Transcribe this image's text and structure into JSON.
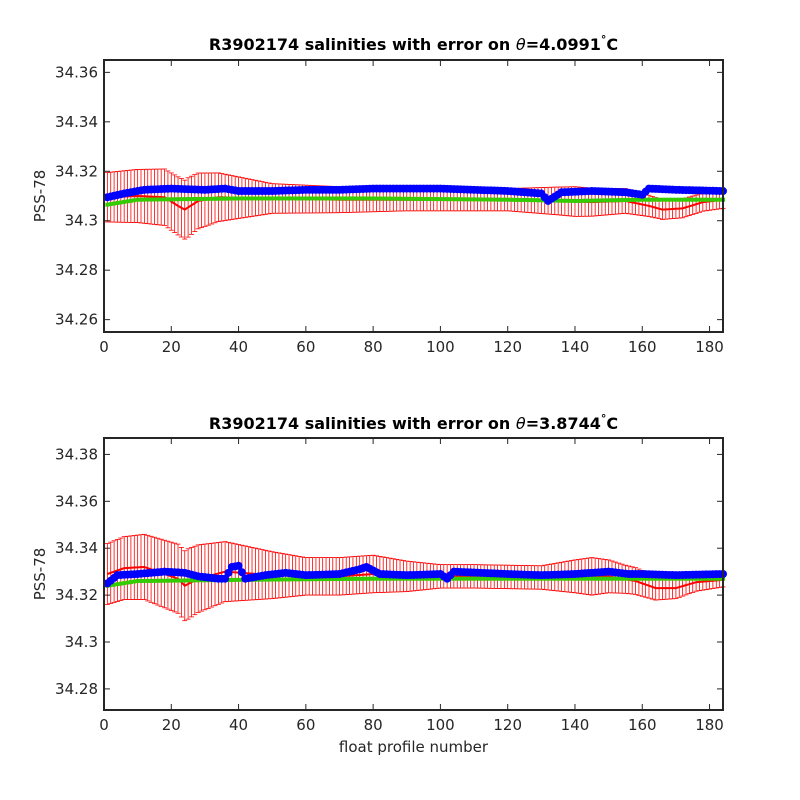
{
  "chart_data": [
    {
      "type": "line",
      "title_parts": [
        "R3902174 salinities with error on ",
        "θ",
        "=4.0991",
        "°",
        "C"
      ],
      "xlabel": "",
      "ylabel": "PSS-78",
      "xlim": [
        0,
        184
      ],
      "ylim": [
        34.255,
        34.365
      ],
      "xticks": [
        0,
        20,
        40,
        60,
        80,
        100,
        120,
        140,
        160,
        180
      ],
      "xtick_labels": [
        "0",
        "20",
        "40",
        "60",
        "80",
        "100",
        "120",
        "140",
        "160",
        "180"
      ],
      "yticks": [
        34.26,
        34.28,
        34.3,
        34.32,
        34.34,
        34.36
      ],
      "ytick_labels": [
        "34.26",
        "34.28",
        "34.3",
        "34.32",
        "34.34",
        "34.36"
      ],
      "grid": false,
      "series": [
        {
          "role": "red-mapped-with-error",
          "color": "#ff0000",
          "points": [
            [
              1,
              34.3095
            ],
            [
              10,
              34.31
            ],
            [
              18,
              34.3095
            ],
            [
              22,
              34.306
            ],
            [
              24,
              34.3045
            ],
            [
              28,
              34.308
            ],
            [
              34,
              34.3095
            ],
            [
              50,
              34.309
            ],
            [
              70,
              34.3085
            ],
            [
              90,
              34.3085
            ],
            [
              110,
              34.3085
            ],
            [
              120,
              34.3085
            ],
            [
              135,
              34.308
            ],
            [
              145,
              34.3075
            ],
            [
              155,
              34.308
            ],
            [
              162,
              34.306
            ],
            [
              166,
              34.3045
            ],
            [
              172,
              34.305
            ],
            [
              178,
              34.3075
            ],
            [
              184,
              34.3085
            ]
          ],
          "error": [
            [
              1,
              0.01
            ],
            [
              25,
              0.012
            ],
            [
              50,
              0.006
            ],
            [
              90,
              0.0045
            ],
            [
              120,
              0.0045
            ],
            [
              140,
              0.006
            ],
            [
              155,
              0.005
            ],
            [
              165,
              0.004
            ],
            [
              184,
              0.0035
            ]
          ]
        },
        {
          "role": "green-calibrated",
          "color": "#33cc00",
          "points": [
            [
              1,
              34.3065
            ],
            [
              10,
              34.3085
            ],
            [
              40,
              34.309
            ],
            [
              80,
              34.309
            ],
            [
              120,
              34.3085
            ],
            [
              140,
              34.308
            ],
            [
              160,
              34.3085
            ],
            [
              184,
              34.3085
            ]
          ]
        },
        {
          "role": "blue-float",
          "color": "#0000ff",
          "points": [
            [
              1,
              34.3095
            ],
            [
              6,
              34.311
            ],
            [
              12,
              34.3125
            ],
            [
              20,
              34.313
            ],
            [
              30,
              34.3125
            ],
            [
              36,
              34.313
            ],
            [
              40,
              34.312
            ],
            [
              50,
              34.312
            ],
            [
              60,
              34.3125
            ],
            [
              70,
              34.3125
            ],
            [
              80,
              34.313
            ],
            [
              90,
              34.313
            ],
            [
              100,
              34.313
            ],
            [
              110,
              34.3125
            ],
            [
              120,
              34.312
            ],
            [
              130,
              34.311
            ],
            [
              132,
              34.308
            ],
            [
              136,
              34.3115
            ],
            [
              145,
              34.312
            ],
            [
              155,
              34.3115
            ],
            [
              160,
              34.3105
            ],
            [
              162,
              34.313
            ],
            [
              170,
              34.3125
            ],
            [
              184,
              34.312
            ]
          ]
        }
      ]
    },
    {
      "type": "line",
      "title_parts": [
        "R3902174 salinities with error on ",
        "θ",
        "=3.8744",
        "°",
        "C"
      ],
      "xlabel": "float profile number",
      "ylabel": "PSS-78",
      "xlim": [
        0,
        184
      ],
      "ylim": [
        34.271,
        34.387
      ],
      "xticks": [
        0,
        20,
        40,
        60,
        80,
        100,
        120,
        140,
        160,
        180
      ],
      "xtick_labels": [
        "0",
        "20",
        "40",
        "60",
        "80",
        "100",
        "120",
        "140",
        "160",
        "180"
      ],
      "yticks": [
        34.28,
        34.3,
        34.32,
        34.34,
        34.36,
        34.38
      ],
      "ytick_labels": [
        "34.28",
        "34.3",
        "34.32",
        "34.34",
        "34.36",
        "34.38"
      ],
      "grid": false,
      "series": [
        {
          "role": "red-mapped-with-error",
          "color": "#ff0000",
          "points": [
            [
              1,
              34.329
            ],
            [
              6,
              34.3315
            ],
            [
              12,
              34.332
            ],
            [
              18,
              34.329
            ],
            [
              22,
              34.327
            ],
            [
              24,
              34.324
            ],
            [
              28,
              34.327
            ],
            [
              36,
              34.33
            ],
            [
              50,
              34.3285
            ],
            [
              60,
              34.328
            ],
            [
              70,
              34.328
            ],
            [
              80,
              34.329
            ],
            [
              90,
              34.328
            ],
            [
              110,
              34.328
            ],
            [
              130,
              34.3275
            ],
            [
              140,
              34.328
            ],
            [
              150,
              34.328
            ],
            [
              158,
              34.326
            ],
            [
              164,
              34.323
            ],
            [
              170,
              34.323
            ],
            [
              176,
              34.3255
            ],
            [
              184,
              34.3265
            ]
          ],
          "error": [
            [
              1,
              0.013
            ],
            [
              25,
              0.015
            ],
            [
              40,
              0.012
            ],
            [
              60,
              0.008
            ],
            [
              80,
              0.008
            ],
            [
              100,
              0.005
            ],
            [
              120,
              0.005
            ],
            [
              130,
              0.005
            ],
            [
              145,
              0.008
            ],
            [
              155,
              0.006
            ],
            [
              165,
              0.005
            ],
            [
              184,
              0.003
            ]
          ]
        },
        {
          "role": "green-calibrated",
          "color": "#33cc00",
          "points": [
            [
              1,
              34.324
            ],
            [
              10,
              34.326
            ],
            [
              40,
              34.3265
            ],
            [
              80,
              34.327
            ],
            [
              120,
              34.327
            ],
            [
              160,
              34.327
            ],
            [
              184,
              34.327
            ]
          ]
        },
        {
          "role": "blue-float",
          "color": "#0000ff",
          "points": [
            [
              1,
              34.325
            ],
            [
              4,
              34.3285
            ],
            [
              10,
              34.329
            ],
            [
              18,
              34.33
            ],
            [
              24,
              34.3295
            ],
            [
              28,
              34.328
            ],
            [
              34,
              34.327
            ],
            [
              36,
              34.327
            ],
            [
              38,
              34.332
            ],
            [
              40,
              34.3325
            ],
            [
              42,
              34.327
            ],
            [
              48,
              34.3285
            ],
            [
              54,
              34.3295
            ],
            [
              60,
              34.3285
            ],
            [
              70,
              34.329
            ],
            [
              76,
              34.331
            ],
            [
              78,
              34.332
            ],
            [
              82,
              34.329
            ],
            [
              90,
              34.3285
            ],
            [
              100,
              34.329
            ],
            [
              102,
              34.327
            ],
            [
              104,
              34.33
            ],
            [
              120,
              34.329
            ],
            [
              130,
              34.3285
            ],
            [
              140,
              34.329
            ],
            [
              150,
              34.33
            ],
            [
              156,
              34.329
            ],
            [
              160,
              34.329
            ],
            [
              170,
              34.3285
            ],
            [
              184,
              34.329
            ]
          ]
        }
      ]
    }
  ]
}
